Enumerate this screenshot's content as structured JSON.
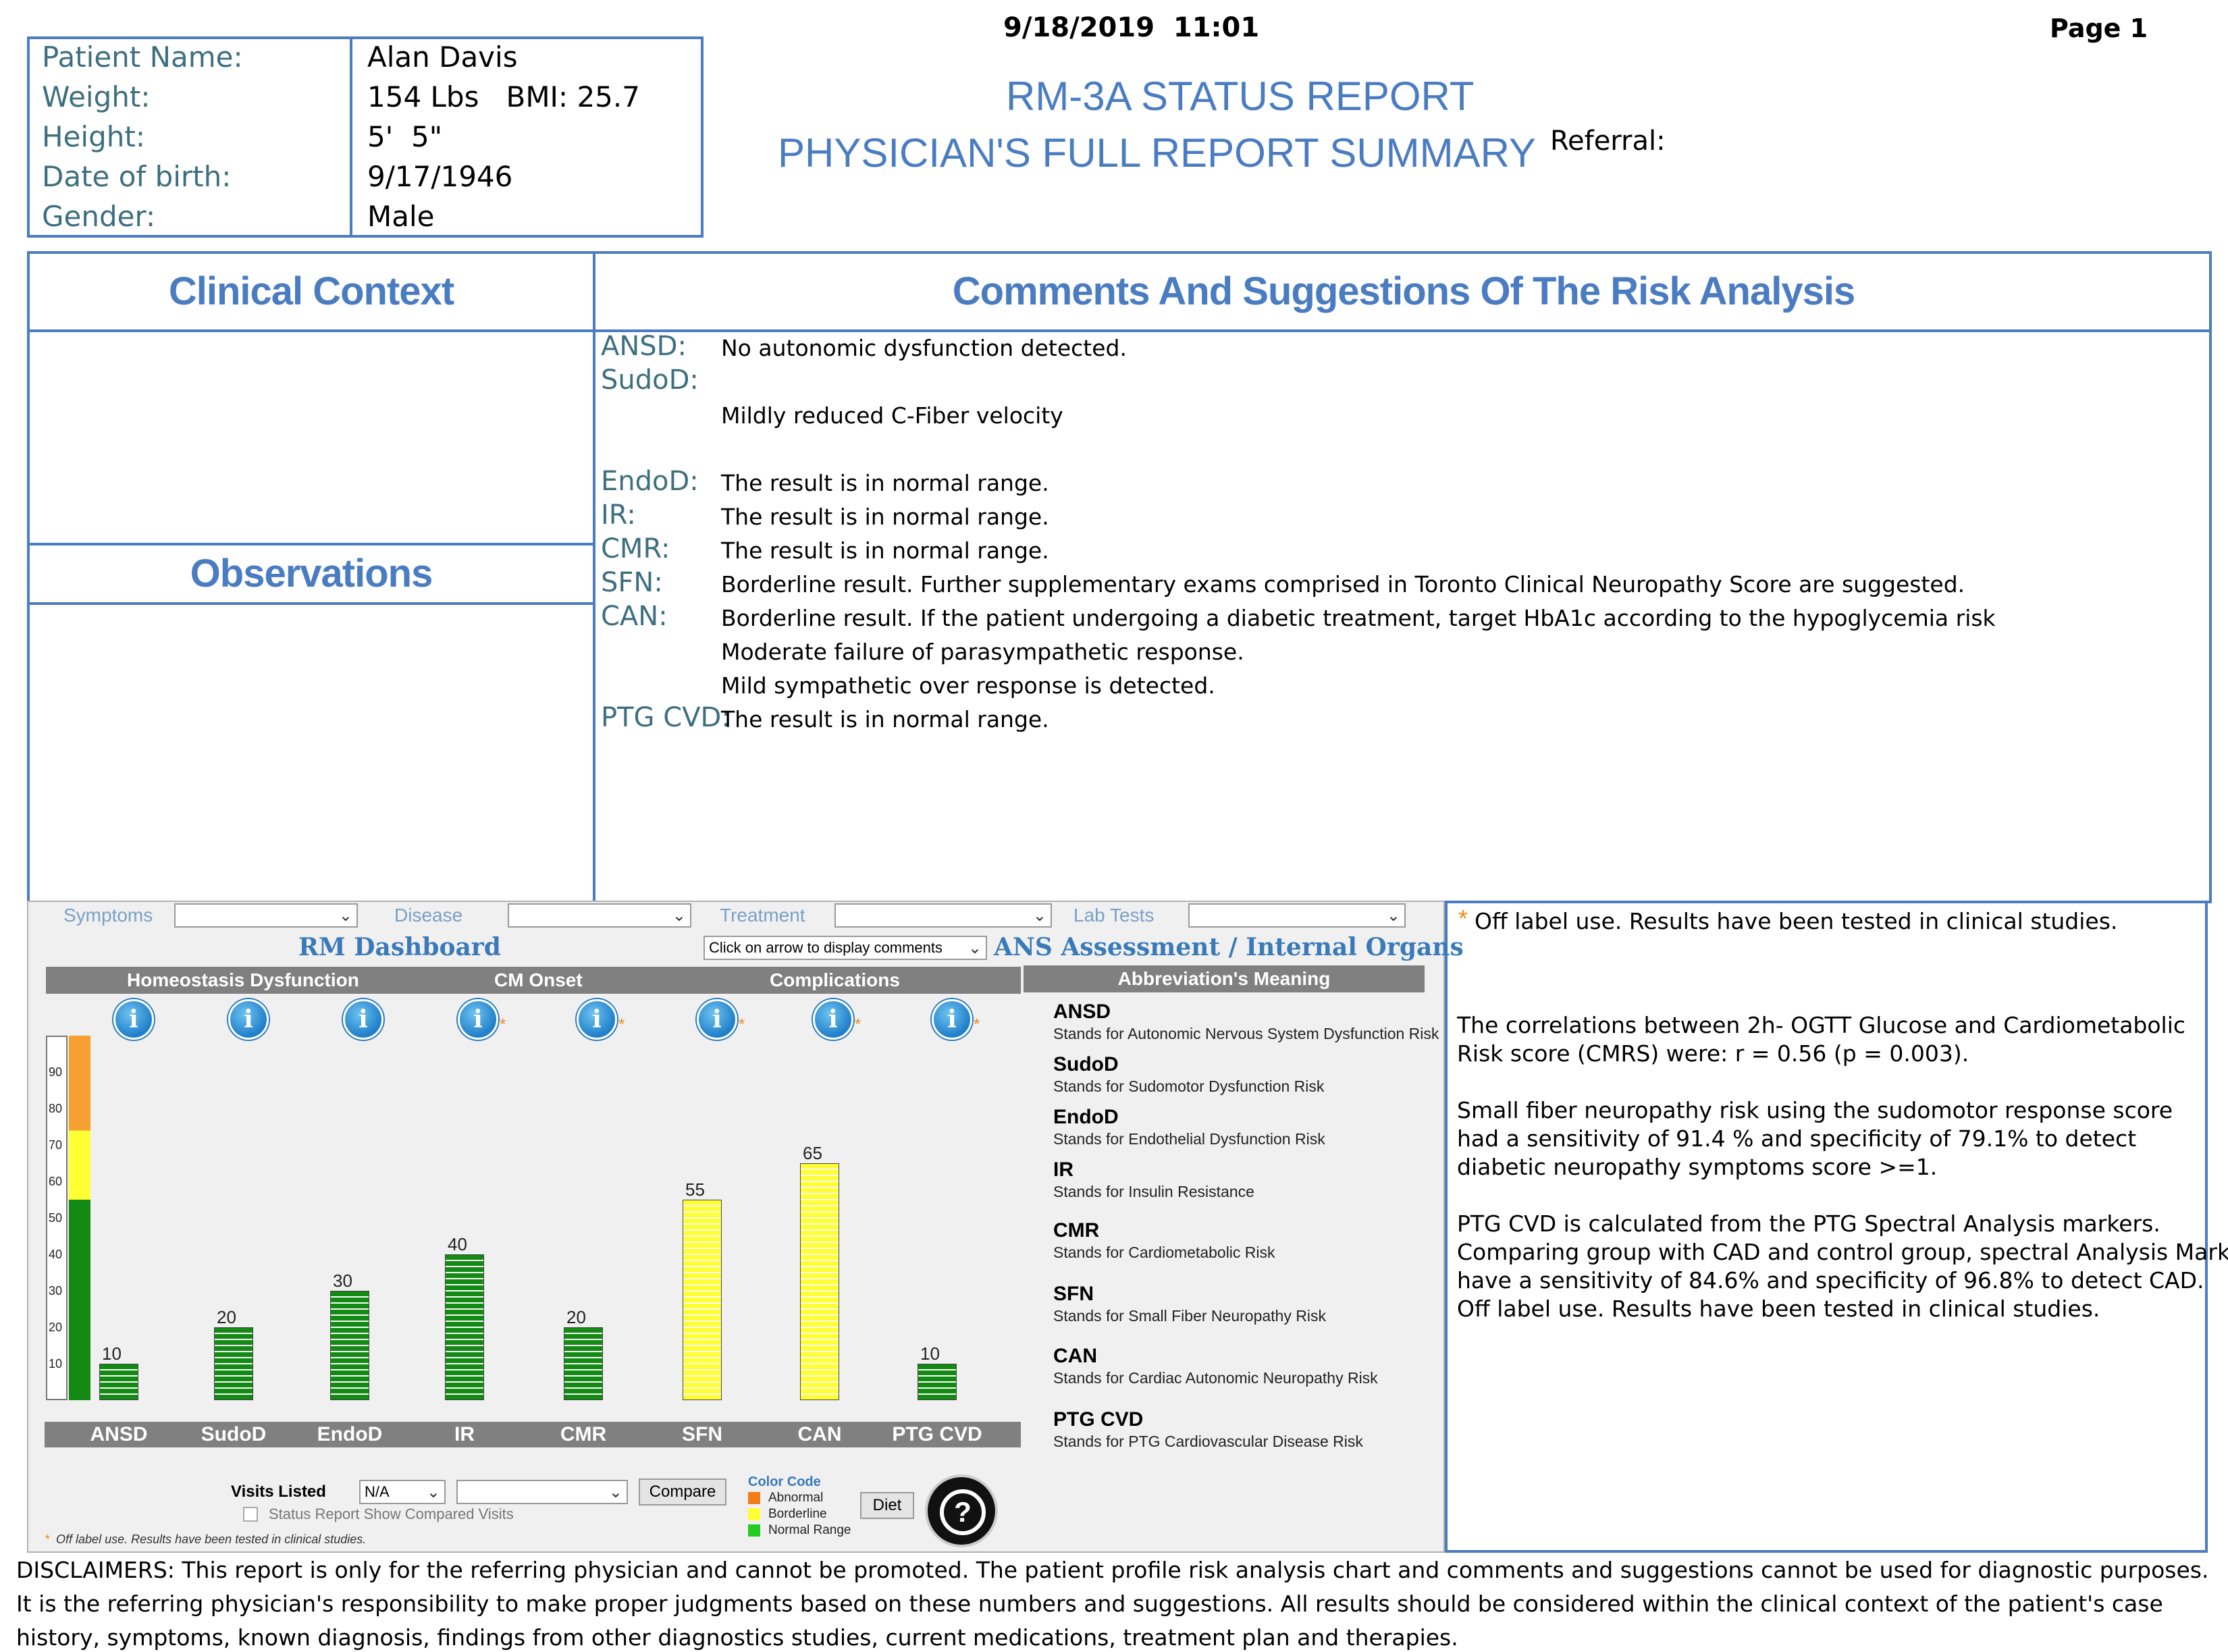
{
  "header": {
    "datetime": "9/18/2019  11:01",
    "page": "Page 1"
  },
  "patient": {
    "labels": [
      "Patient Name:",
      "Weight:",
      "Height:",
      "Date of birth:",
      "Gender:"
    ],
    "values": [
      "Alan Davis",
      "154 Lbs   BMI: 25.7",
      "5'  5\"",
      "9/17/1946",
      "Male"
    ]
  },
  "titles": {
    "line1": "RM-3A STATUS REPORT",
    "line2": "PHYSICIAN'S FULL REPORT SUMMARY",
    "referral": "Referral:"
  },
  "sections": {
    "clinical_context": "Clinical Context",
    "comments": "Comments And Suggestions Of The Risk Analysis",
    "observations": "Observations"
  },
  "comments": {
    "ansd_label": "ANSD:",
    "ansd_text": "No autonomic dysfunction detected.",
    "sudod_label": "SudoD:",
    "sudod_text": "Mildly reduced C-Fiber velocity",
    "endod_label": "EndoD:",
    "endod_text": "The result is in normal range.",
    "ir_label": "IR:",
    "ir_text": "The result is in normal range.",
    "cmr_label": "CMR:",
    "cmr_text": "The result is in normal range.",
    "sfn_label": "SFN:",
    "sfn_text": "Borderline result. Further supplementary exams comprised in Toronto Clinical Neuropathy Score are suggested.",
    "can_label": "CAN:",
    "can_text1": "Borderline result. If the patient undergoing a diabetic treatment, target HbA1c according to the hypoglycemia risk",
    "can_text2": "Moderate failure of parasympathetic response.",
    "can_text3": "Mild sympathetic over response is detected.",
    "ptg_label": "PTG CVD:",
    "ptg_text": "The result is in normal range."
  },
  "dashboard": {
    "filters": {
      "symptoms": "Symptoms",
      "disease": "Disease",
      "treatment": "Treatment",
      "lab_tests": "Lab Tests"
    },
    "title_left": "RM Dashboard",
    "comment_select": "Click on arrow to display comments",
    "title_right": "ANS Assessment / Internal Organs",
    "group_homeostasis": "Homeostasis Dysfunction",
    "group_cm_onset": "CM Onset",
    "group_complications": "Complications",
    "abbr_header": "Abbreviation's Meaning",
    "abbreviations": [
      {
        "t": "ANSD",
        "d": "Stands for Autonomic Nervous System Dysfunction Risk"
      },
      {
        "t": "SudoD",
        "d": "Stands for Sudomotor Dysfunction Risk"
      },
      {
        "t": "EndoD",
        "d": "Stands for Endothelial Dysfunction Risk"
      },
      {
        "t": "IR",
        "d": "Stands for Insulin Resistance"
      },
      {
        "t": "CMR",
        "d": "Stands for Cardiometabolic Risk"
      },
      {
        "t": "SFN",
        "d": "Stands for Small Fiber Neuropathy Risk"
      },
      {
        "t": "CAN",
        "d": "Stands for Cardiac Autonomic Neuropathy Risk"
      },
      {
        "t": "PTG CVD",
        "d": "Stands for PTG Cardiovascular Disease Risk"
      }
    ],
    "visits_listed": "Visits Listed",
    "visits_value": "N/A",
    "compare": "Compare",
    "status_report": "Status Report Show Compared Visits",
    "color_code": "Color Code",
    "legend": [
      {
        "label": "Abnormal",
        "color": "#f07d1a"
      },
      {
        "label": "Borderline",
        "color": "#ffff33"
      },
      {
        "label": "Normal Range",
        "color": "#22cc22"
      }
    ],
    "diet": "Diet",
    "off_label_note": "Off label use. Results have been tested in clinical studies."
  },
  "chart_data": {
    "type": "bar",
    "categories": [
      "ANSD",
      "SudoD",
      "EndoD",
      "IR",
      "CMR",
      "SFN",
      "CAN",
      "PTG CVD"
    ],
    "values": [
      10,
      20,
      30,
      40,
      20,
      55,
      65,
      10
    ],
    "status": [
      "normal",
      "normal",
      "normal",
      "normal",
      "normal",
      "borderline",
      "borderline",
      "normal"
    ],
    "starred": [
      false,
      false,
      false,
      true,
      true,
      true,
      true,
      true
    ],
    "ylim": [
      0,
      100
    ],
    "yticks": [
      10,
      20,
      30,
      40,
      50,
      60,
      70,
      80,
      90
    ],
    "colors": {
      "normal": "#138a13",
      "borderline": "#ffff33",
      "abnormal": "#f0a030"
    }
  },
  "right_panel": {
    "star_note": "Off label use. Results have been tested in clinical studies.",
    "p1_l1": "The correlations between 2h- OGTT Glucose and Cardiometabolic",
    "p1_l2": "Risk score (CMRS) were:  r = 0.56 (p = 0.003).",
    "p2_l1": "Small fiber neuropathy risk using the sudomotor response score",
    "p2_l2": "had a sensitivity of 91.4 % and specificity of 79.1% to detect",
    "p2_l3": "diabetic neuropathy symptoms score >=1.",
    "p3_l1": "PTG CVD is calculated from the PTG Spectral Analysis markers.",
    "p3_l2": "Comparing group with CAD and control group, spectral Analysis Markers",
    "p3_l3": "have a sensitivity of 84.6% and specificity of 96.8% to detect CAD.",
    "p3_l4": "Off label use. Results have been tested in clinical studies."
  },
  "disclaimers": {
    "l1": "DISCLAIMERS: This report is only for the referring physician and cannot be promoted. The patient profile risk analysis chart and comments and suggestions cannot be used for diagnostic purposes.",
    "l2": "It is the referring physician's responsibility to make proper judgments based on these numbers and suggestions. All results should be considered within the clinical context of the patient's case",
    "l3": "history, symptoms, known diagnosis, findings from other diagnostics studies, current medications, treatment plan and therapies."
  }
}
